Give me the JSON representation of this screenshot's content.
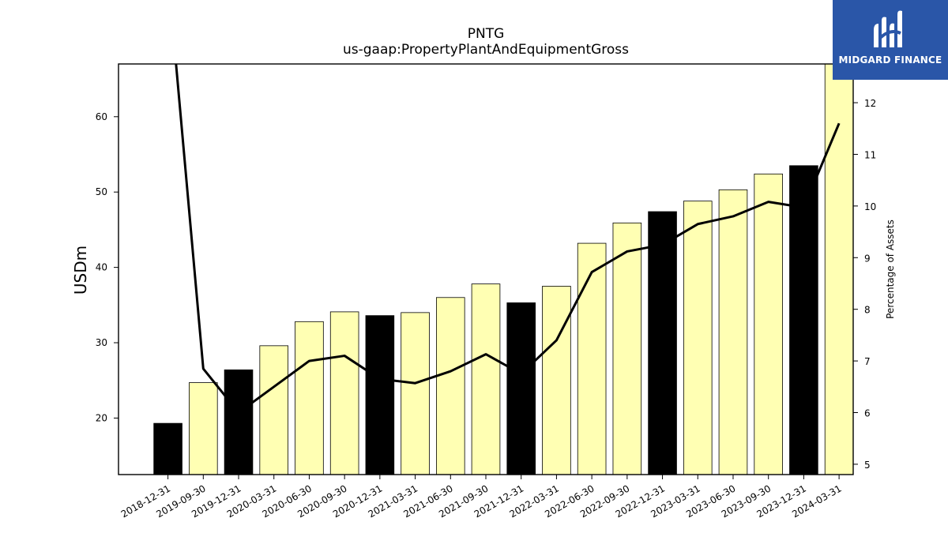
{
  "chart_data": {
    "type": "bar",
    "title": "PNTG",
    "subtitle": "us-gaap:PropertyPlantAndEquipmentGross",
    "ylabel": "USDm",
    "y2label": "Percentage of Assets",
    "categories": [
      "2018-12-31",
      "2019-09-30",
      "2019-12-31",
      "2020-03-31",
      "2020-06-30",
      "2020-09-30",
      "2020-12-31",
      "2021-03-31",
      "2021-06-30",
      "2021-09-30",
      "2021-12-31",
      "2022-03-31",
      "2022-06-30",
      "2022-09-30",
      "2022-12-31",
      "2023-03-31",
      "2023-06-30",
      "2023-09-30",
      "2023-12-31",
      "2024-03-31"
    ],
    "series": [
      {
        "axis": "left",
        "kind": "bar",
        "values": [
          19.3,
          24.7,
          26.4,
          29.6,
          32.8,
          34.1,
          33.6,
          34.0,
          36.0,
          37.8,
          35.3,
          37.5,
          43.2,
          45.9,
          47.4,
          48.8,
          50.3,
          52.4,
          53.5,
          67.5
        ],
        "period_type": [
          "annual",
          "quarterly",
          "annual",
          "quarterly",
          "quarterly",
          "quarterly",
          "annual",
          "quarterly",
          "quarterly",
          "quarterly",
          "annual",
          "quarterly",
          "quarterly",
          "quarterly",
          "annual",
          "quarterly",
          "quarterly",
          "quarterly",
          "annual",
          "quarterly"
        ]
      },
      {
        "axis": "right",
        "kind": "line",
        "values": [
          14.5,
          6.85,
          6.0,
          6.5,
          7.0,
          7.1,
          6.65,
          6.57,
          6.8,
          7.13,
          6.75,
          7.4,
          8.72,
          9.12,
          9.25,
          9.65,
          9.8,
          10.08,
          9.97,
          11.6
        ]
      }
    ],
    "ylim": [
      12.5,
      67
    ],
    "y2lim": [
      4.8,
      12.75
    ],
    "yticks": [
      20,
      30,
      40,
      50,
      60
    ],
    "y2ticks": [
      5,
      6,
      7,
      8,
      9,
      10,
      11,
      12
    ],
    "colors": {
      "annual": "#000000",
      "quarterly": "#ffffb3",
      "bar_edge": "#000000",
      "line": "#000000"
    },
    "grid": false,
    "legend": "none"
  },
  "logo": {
    "text": "MIDGARD FINANCE",
    "background": "#2a56a8"
  }
}
